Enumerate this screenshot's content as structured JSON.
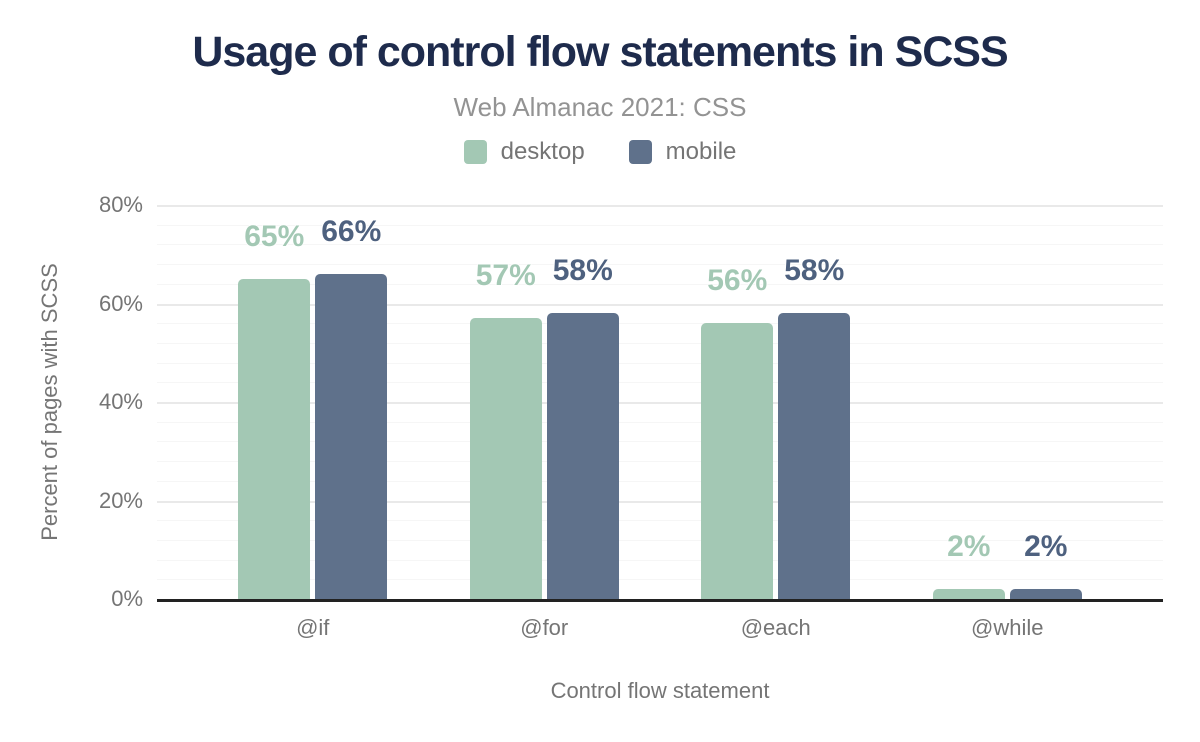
{
  "header": {
    "title": "Usage of control flow statements in SCSS",
    "subtitle": "Web Almanac 2021: CSS"
  },
  "legend": [
    {
      "label": "desktop",
      "color": "#a3c8b4"
    },
    {
      "label": "mobile",
      "color": "#5f718b"
    }
  ],
  "colors": {
    "title_text": "#1e2b4c",
    "subtitle_text": "#939393",
    "axis_text": "#757575",
    "axis_line": "#222222",
    "grid_major": "#e9e9e9",
    "grid_minor": "#f6f6f6",
    "background": "#ffffff",
    "desktop_series": "#a3c8b4",
    "mobile_series": "#5f718b",
    "mobile_value_label": "#4e617f"
  },
  "chart_data": {
    "type": "bar",
    "title": "Usage of control flow statements in SCSS",
    "subtitle": "Web Almanac 2021: CSS",
    "categories": [
      "@if",
      "@for",
      "@each",
      "@while"
    ],
    "series": [
      {
        "name": "desktop",
        "color": "#a3c8b4",
        "label_color": "#a3c8b4",
        "values": [
          65,
          57,
          56,
          2
        ]
      },
      {
        "name": "mobile",
        "color": "#5f718b",
        "label_color": "#4e617f",
        "values": [
          66,
          58,
          58,
          2
        ]
      }
    ],
    "value_label_format": "{v}%",
    "xlabel": "Control flow statement",
    "ylabel": "Percent of pages with SCSS",
    "ylim": [
      0,
      80
    ],
    "yticks": [
      {
        "value": 0,
        "label": "0%"
      },
      {
        "value": 20,
        "label": "20%"
      },
      {
        "value": 40,
        "label": "40%"
      },
      {
        "value": 60,
        "label": "60%"
      },
      {
        "value": 80,
        "label": "80%"
      }
    ],
    "grid": {
      "minor_step": 4,
      "major_step": 20,
      "grid_on": true
    },
    "legend_position": "top"
  }
}
